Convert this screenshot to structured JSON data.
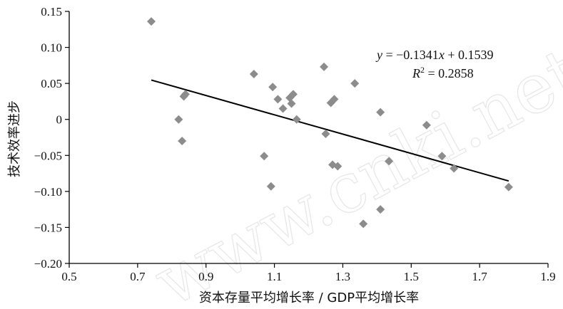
{
  "watermark": "www.cnki.net",
  "chart_data": {
    "type": "scatter",
    "xlabel": "资本存量平均增长率 / GDP平均增长率",
    "ylabel": "技术效率进步",
    "xlim": [
      0.5,
      1.9
    ],
    "ylim": [
      -0.2,
      0.15
    ],
    "xticks": [
      0.5,
      0.7,
      0.9,
      1.1,
      1.3,
      1.5,
      1.7,
      1.9
    ],
    "xtick_labels": [
      "0.5",
      "0.7",
      "0.9",
      "1.1",
      "1.3",
      "1.5",
      "1.7",
      "1.9"
    ],
    "yticks": [
      -0.2,
      -0.15,
      -0.1,
      -0.05,
      0,
      0.05,
      0.1,
      0.15
    ],
    "ytick_labels": [
      "−0.20",
      "−0.15",
      "−0.10",
      "−0.05",
      "0",
      "0.05",
      "0.10",
      "0.15"
    ],
    "marker_color": "#8c8c8c",
    "line_color": "#000000",
    "grid": false,
    "points": [
      {
        "x": 0.74,
        "y": 0.136
      },
      {
        "x": 0.82,
        "y": 0.0
      },
      {
        "x": 0.83,
        "y": -0.03
      },
      {
        "x": 0.835,
        "y": 0.032
      },
      {
        "x": 0.84,
        "y": 0.035
      },
      {
        "x": 1.04,
        "y": 0.063
      },
      {
        "x": 1.07,
        "y": -0.051
      },
      {
        "x": 1.09,
        "y": -0.093
      },
      {
        "x": 1.095,
        "y": 0.045
      },
      {
        "x": 1.11,
        "y": 0.028
      },
      {
        "x": 1.125,
        "y": 0.015
      },
      {
        "x": 1.145,
        "y": 0.03
      },
      {
        "x": 1.15,
        "y": 0.022
      },
      {
        "x": 1.155,
        "y": 0.035
      },
      {
        "x": 1.165,
        "y": 0.0
      },
      {
        "x": 1.245,
        "y": 0.073
      },
      {
        "x": 1.25,
        "y": -0.02
      },
      {
        "x": 1.265,
        "y": 0.023
      },
      {
        "x": 1.27,
        "y": -0.063
      },
      {
        "x": 1.275,
        "y": 0.028
      },
      {
        "x": 1.285,
        "y": -0.065
      },
      {
        "x": 1.335,
        "y": 0.05
      },
      {
        "x": 1.36,
        "y": -0.145
      },
      {
        "x": 1.41,
        "y": 0.01
      },
      {
        "x": 1.41,
        "y": -0.125
      },
      {
        "x": 1.435,
        "y": -0.058
      },
      {
        "x": 1.545,
        "y": -0.008
      },
      {
        "x": 1.59,
        "y": -0.051
      },
      {
        "x": 1.625,
        "y": -0.068
      },
      {
        "x": 1.785,
        "y": -0.094
      }
    ],
    "trendline": {
      "slope": -0.1341,
      "intercept": 0.1539,
      "x_range": [
        0.74,
        1.785
      ],
      "equation_prefix": "y",
      "equation_rest": " = −0.1341",
      "equation_x": "x",
      "equation_tail": " + 0.1539",
      "r2_label": "R",
      "r2_sup": "2",
      "r2_value": " = 0.2858"
    }
  }
}
